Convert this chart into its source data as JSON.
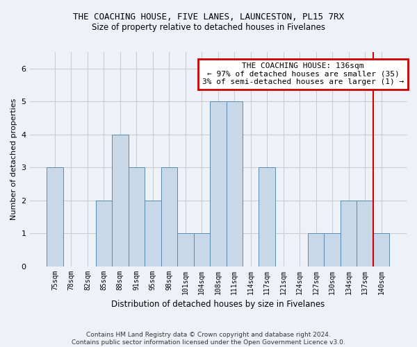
{
  "title": "THE COACHING HOUSE, FIVE LANES, LAUNCESTON, PL15 7RX",
  "subtitle": "Size of property relative to detached houses in Fivelanes",
  "xlabel": "Distribution of detached houses by size in Fivelanes",
  "ylabel": "Number of detached properties",
  "footer1": "Contains HM Land Registry data © Crown copyright and database right 2024.",
  "footer2": "Contains public sector information licensed under the Open Government Licence v3.0.",
  "annotation_line1": "THE COACHING HOUSE: 136sqm",
  "annotation_line2": "← 97% of detached houses are smaller (35)",
  "annotation_line3": "3% of semi-detached houses are larger (1) →",
  "bins": [
    "75sqm",
    "78sqm",
    "82sqm",
    "85sqm",
    "88sqm",
    "91sqm",
    "95sqm",
    "98sqm",
    "101sqm",
    "104sqm",
    "108sqm",
    "111sqm",
    "114sqm",
    "117sqm",
    "121sqm",
    "124sqm",
    "127sqm",
    "130sqm",
    "134sqm",
    "137sqm",
    "140sqm"
  ],
  "values": [
    3,
    0,
    0,
    2,
    4,
    3,
    2,
    3,
    1,
    1,
    5,
    5,
    0,
    3,
    0,
    0,
    1,
    1,
    2,
    2,
    1
  ],
  "bar_color_normal": "#c8d8e8",
  "bar_edge_color": "#5a8ab0",
  "highlight_index": 19,
  "highlight_line_color": "#cc0000",
  "ylim": [
    0,
    6.5
  ],
  "yticks": [
    0,
    1,
    2,
    3,
    4,
    5,
    6
  ],
  "grid_color": "#cccccc",
  "bg_color": "#eef2f8",
  "box_color": "#cc0000",
  "title_fontsize": 9,
  "subtitle_fontsize": 8.5,
  "ylabel_fontsize": 8,
  "xlabel_fontsize": 8.5,
  "tick_fontsize": 7,
  "footer_fontsize": 6.5,
  "annotation_fontsize": 8
}
